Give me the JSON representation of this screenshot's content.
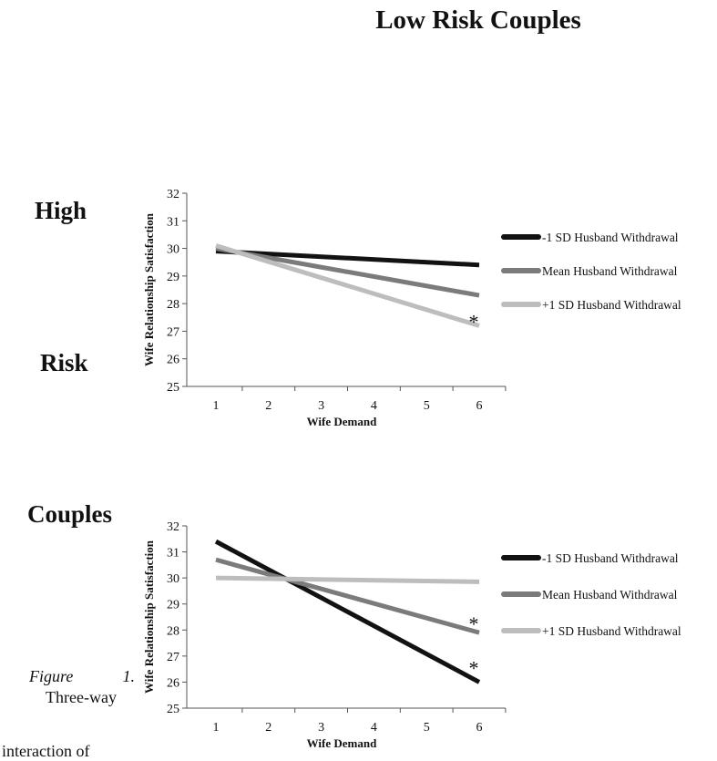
{
  "page": {
    "title": "Low Risk Couples",
    "side_labels": [
      "High",
      "Risk",
      "Couples"
    ],
    "caption_figure": "Figure",
    "caption_number": "1.",
    "caption_text": "Three-way",
    "caption_tail": "interaction of"
  },
  "colors": {
    "minus1sd": "#121212",
    "mean": "#7b7b7b",
    "plus1sd": "#bdbdbd",
    "axis": "#555555"
  },
  "chart_data": [
    {
      "type": "line",
      "xlabel": "Wife Demand",
      "ylabel": "Wife Relationship Satisfaction",
      "x_ticks": [
        "1",
        "2",
        "3",
        "4",
        "5",
        "6"
      ],
      "y_ticks": [
        "25",
        "26",
        "27",
        "28",
        "29",
        "30",
        "31",
        "32"
      ],
      "xlim": [
        1,
        6
      ],
      "ylim": [
        25,
        32
      ],
      "legend_position": "right",
      "series": [
        {
          "name": "-1 SD Husband Withdrawal",
          "x": [
            1,
            6
          ],
          "y": [
            29.9,
            29.4
          ],
          "color": "#121212"
        },
        {
          "name": "Mean Husband Withdrawal",
          "x": [
            1,
            6
          ],
          "y": [
            30.0,
            28.3
          ],
          "color": "#7b7b7b"
        },
        {
          "name": "+1 SD Husband Withdrawal",
          "x": [
            1,
            6
          ],
          "y": [
            30.1,
            27.2
          ],
          "color": "#bdbdbd"
        }
      ],
      "annotations": [
        {
          "text": "*",
          "x": 6,
          "y": 27.5
        }
      ]
    },
    {
      "type": "line",
      "xlabel": "Wife Demand",
      "ylabel": "Wife Relationship Satisfaction",
      "x_ticks": [
        "1",
        "2",
        "3",
        "4",
        "5",
        "6"
      ],
      "y_ticks": [
        "25",
        "26",
        "27",
        "28",
        "29",
        "30",
        "31",
        "32"
      ],
      "xlim": [
        1,
        6
      ],
      "ylim": [
        25,
        32
      ],
      "legend_position": "right",
      "series": [
        {
          "name": "-1 SD Husband Withdrawal",
          "x": [
            1,
            6
          ],
          "y": [
            31.4,
            26.0
          ],
          "color": "#121212"
        },
        {
          "name": "Mean Husband Withdrawal",
          "x": [
            1,
            6
          ],
          "y": [
            30.7,
            27.9
          ],
          "color": "#7b7b7b"
        },
        {
          "name": "+1 SD Husband Withdrawal",
          "x": [
            1,
            6
          ],
          "y": [
            30.0,
            29.85
          ],
          "color": "#bdbdbd"
        }
      ],
      "annotations": [
        {
          "text": "*",
          "x": 6,
          "y": 28.4
        },
        {
          "text": "*",
          "x": 6,
          "y": 26.7
        }
      ]
    }
  ]
}
